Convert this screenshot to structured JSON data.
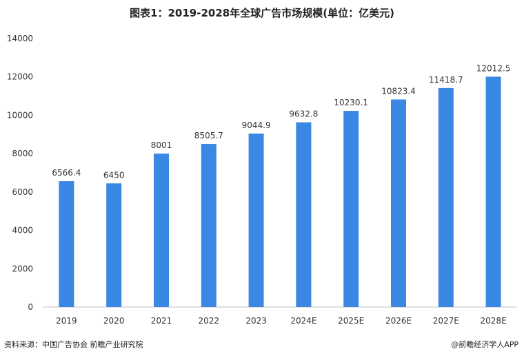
{
  "title": "图表1：2019-2028年全球广告市场规模(单位：亿美元)",
  "source": "资料来源：中国广告协会 前瞻产业研究院",
  "credit": "@前瞻经济学人APP",
  "colors": {
    "bar": "#3b88e4",
    "axis": "#bfbfbf",
    "text": "#333333"
  },
  "chart_data": {
    "type": "bar",
    "title": "图表1：2019-2028年全球广告市场规模(单位：亿美元)",
    "categories": [
      "2019",
      "2020",
      "2021",
      "2022",
      "2023",
      "2024E",
      "2025E",
      "2026E",
      "2027E",
      "2028E"
    ],
    "values": [
      6566.4,
      6450,
      8001,
      8505.7,
      9044.9,
      9632.8,
      10230.1,
      10823.4,
      11418.7,
      12012.5
    ],
    "value_labels": [
      "6566.4",
      "6450",
      "8001",
      "8505.7",
      "9044.9",
      "9632.8",
      "10230.1",
      "10823.4",
      "11418.7",
      "12012.5"
    ],
    "yticks": [
      "0",
      "2000",
      "4000",
      "6000",
      "8000",
      "10000",
      "12000",
      "14000"
    ],
    "ylim": [
      0,
      14000
    ],
    "xlabel": "",
    "ylabel": "",
    "grid": false,
    "legend": "none"
  }
}
